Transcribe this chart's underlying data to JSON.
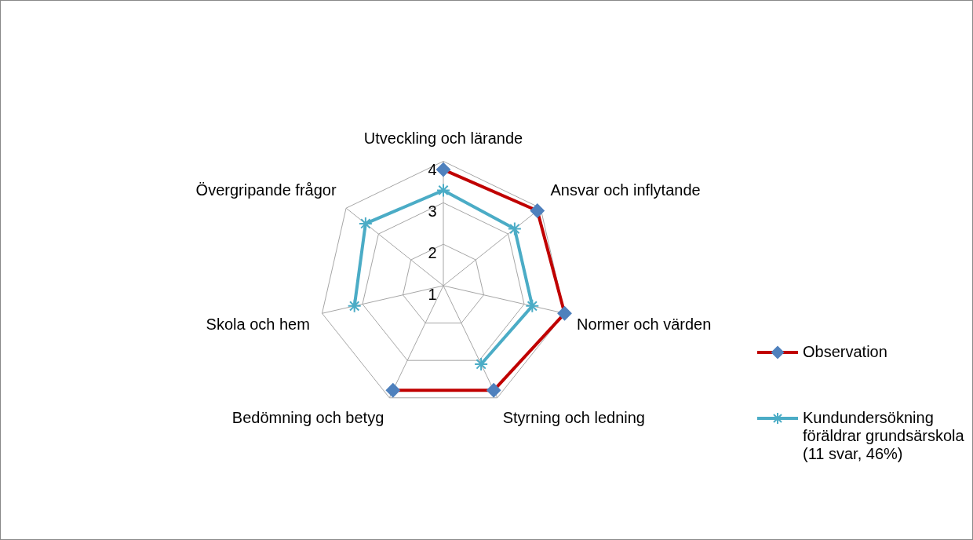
{
  "chart_data": {
    "type": "radar",
    "categories": [
      "Utveckling och lärande",
      "Ansvar och inflytande",
      "Normer och värden",
      "Styrning och ledning",
      "Bedömning och betyg",
      "Skola och hem",
      "Övergripande frågor"
    ],
    "series": [
      {
        "name": "Observation",
        "color": "#c00000",
        "marker": "diamond",
        "values": [
          3.8,
          3.9,
          4.0,
          3.8,
          3.8,
          null,
          null
        ]
      },
      {
        "name": "Kundundersökning föräldrar grundsärskola (11 svar, 46%)",
        "color": "#4bacc6",
        "marker": "cross",
        "values": [
          3.3,
          3.2,
          3.2,
          3.1,
          null,
          3.2,
          3.4
        ]
      }
    ],
    "ylim": [
      1,
      4
    ],
    "yticks": [
      1,
      2,
      3,
      4
    ],
    "grid": true,
    "legend": "right"
  }
}
